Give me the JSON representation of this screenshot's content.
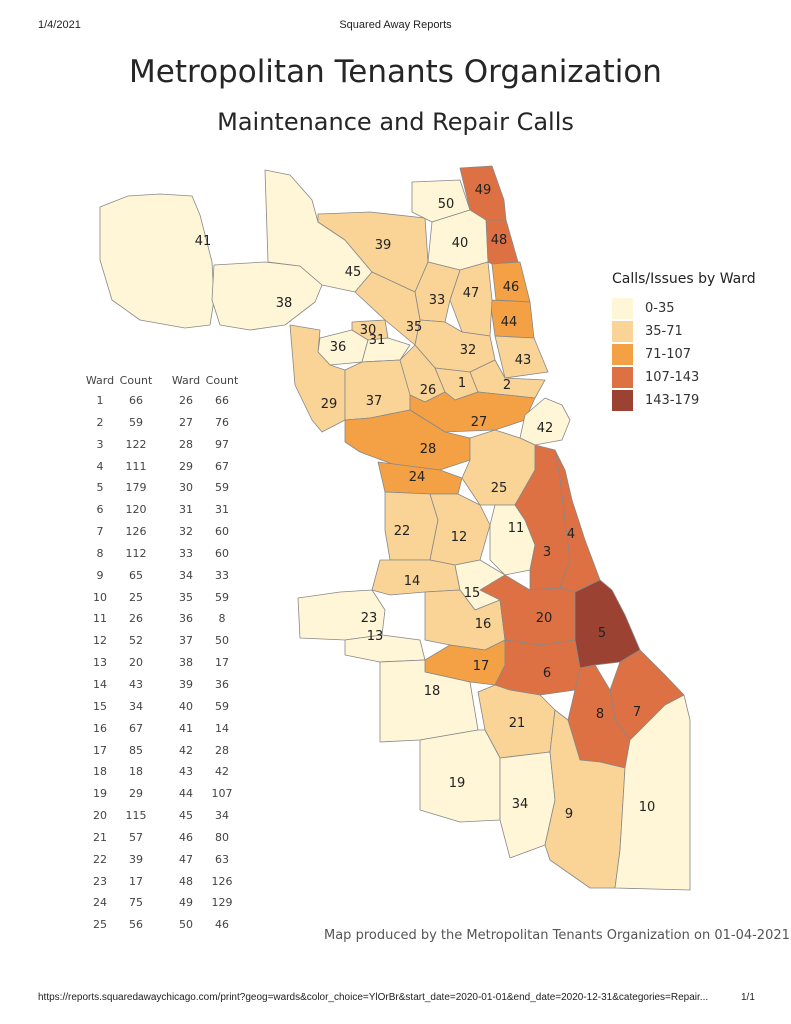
{
  "header": {
    "date": "1/4/2021",
    "site_title": "Squared Away Reports"
  },
  "title": "Metropolitan Tenants Organization",
  "subtitle": "Maintenance and Repair Calls",
  "legend": {
    "title": "Calls/Issues by Ward",
    "items": [
      {
        "label": "0-35",
        "color": "#fef6d6"
      },
      {
        "label": "35-71",
        "color": "#f9d496"
      },
      {
        "label": "71-107",
        "color": "#f3a144"
      },
      {
        "label": "107-143",
        "color": "#dd7144"
      },
      {
        "label": "143-179",
        "color": "#9c4233"
      }
    ]
  },
  "table": {
    "headers": [
      "Ward",
      "Count"
    ],
    "left": [
      [
        "1",
        "66"
      ],
      [
        "2",
        "59"
      ],
      [
        "3",
        "122"
      ],
      [
        "4",
        "111"
      ],
      [
        "5",
        "179"
      ],
      [
        "6",
        "120"
      ],
      [
        "7",
        "126"
      ],
      [
        "8",
        "112"
      ],
      [
        "9",
        "65"
      ],
      [
        "10",
        "25"
      ],
      [
        "11",
        "26"
      ],
      [
        "12",
        "52"
      ],
      [
        "13",
        "20"
      ],
      [
        "14",
        "43"
      ],
      [
        "15",
        "34"
      ],
      [
        "16",
        "67"
      ],
      [
        "17",
        "85"
      ],
      [
        "18",
        "18"
      ],
      [
        "19",
        "29"
      ],
      [
        "20",
        "115"
      ],
      [
        "21",
        "57"
      ],
      [
        "22",
        "39"
      ],
      [
        "23",
        "17"
      ],
      [
        "24",
        "75"
      ],
      [
        "25",
        "56"
      ]
    ],
    "right": [
      [
        "26",
        "66"
      ],
      [
        "27",
        "76"
      ],
      [
        "28",
        "97"
      ],
      [
        "29",
        "67"
      ],
      [
        "30",
        "59"
      ],
      [
        "31",
        "31"
      ],
      [
        "32",
        "60"
      ],
      [
        "33",
        "60"
      ],
      [
        "34",
        "33"
      ],
      [
        "35",
        "59"
      ],
      [
        "36",
        "8"
      ],
      [
        "37",
        "50"
      ],
      [
        "38",
        "17"
      ],
      [
        "39",
        "36"
      ],
      [
        "40",
        "59"
      ],
      [
        "41",
        "14"
      ],
      [
        "42",
        "28"
      ],
      [
        "43",
        "42"
      ],
      [
        "44",
        "107"
      ],
      [
        "45",
        "34"
      ],
      [
        "46",
        "80"
      ],
      [
        "47",
        "63"
      ],
      [
        "48",
        "126"
      ],
      [
        "49",
        "129"
      ],
      [
        "50",
        "46"
      ]
    ]
  },
  "caption": "Map produced by the Metropolitan Tenants Organization on 01-04-2021",
  "footer": {
    "url": "https://reports.squaredawaychicago.com/print?geog=wards&color_choice=YlOrBr&start_date=2020-01-01&end_date=2020-12-31&categories=Repair...",
    "page": "1/1"
  }
}
